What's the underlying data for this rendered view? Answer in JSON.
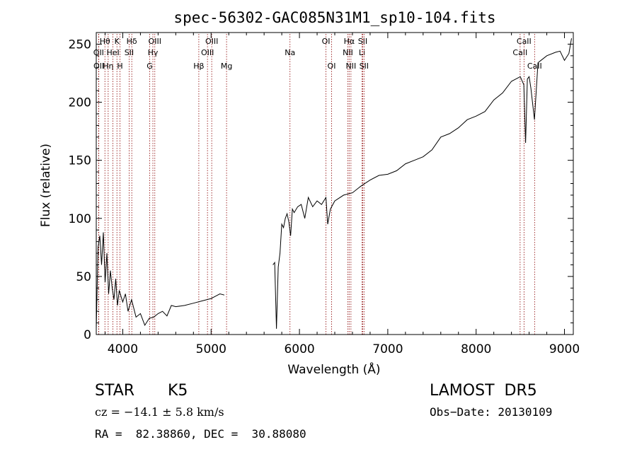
{
  "chart_data": {
    "type": "line",
    "title": "spec-56302-GAC085N31M1_sp10-104.fits",
    "xlabel": "Wavelength (Å)",
    "ylabel": "Flux (relative)",
    "xlim": [
      3700,
      9100
    ],
    "ylim": [
      0,
      260
    ],
    "xticks": [
      4000,
      5000,
      6000,
      7000,
      8000,
      9000
    ],
    "yticks": [
      0,
      50,
      100,
      150,
      200,
      250
    ],
    "grid": false,
    "line_color": "#000000",
    "marker_line_color": "#8b0000",
    "series": [
      {
        "x": [
          3700,
          3720,
          3740,
          3760,
          3780,
          3800,
          3820,
          3840,
          3860,
          3880,
          3900,
          3920,
          3940,
          3960,
          3980,
          4000,
          4030,
          4060,
          4100,
          4150,
          4200,
          4250,
          4300,
          4350,
          4400,
          4450,
          4500,
          4550,
          4600,
          4700,
          4800,
          4900,
          5000,
          5050,
          5100,
          5150
        ],
        "y": [
          5,
          75,
          85,
          60,
          88,
          45,
          70,
          35,
          55,
          40,
          30,
          48,
          25,
          38,
          33,
          28,
          35,
          20,
          30,
          15,
          18,
          8,
          14,
          15,
          18,
          20,
          16,
          25,
          24,
          25,
          27,
          29,
          31,
          33,
          35,
          34
        ]
      },
      {
        "x": [
          5700,
          5720,
          5740,
          5760,
          5780,
          5800,
          5820,
          5840,
          5860,
          5880,
          5900,
          5920,
          5940,
          5980,
          6020,
          6060,
          6100,
          6150,
          6200,
          6250,
          6300,
          6320,
          6350,
          6400,
          6500,
          6600,
          6700,
          6800,
          6900,
          7000,
          7100,
          7200,
          7300,
          7400,
          7500,
          7600,
          7700,
          7800,
          7900,
          8000,
          8100,
          8200,
          8300,
          8400,
          8450,
          8500,
          8540,
          8560,
          8580,
          8600,
          8620,
          8660,
          8700,
          8800,
          8900,
          8950,
          9000,
          9050,
          9080
        ],
        "y": [
          60,
          62,
          5,
          58,
          70,
          95,
          92,
          100,
          104,
          97,
          85,
          108,
          105,
          110,
          112,
          100,
          118,
          110,
          115,
          112,
          118,
          95,
          108,
          115,
          120,
          122,
          128,
          133,
          137,
          138,
          141,
          147,
          150,
          153,
          159,
          170,
          173,
          178,
          185,
          188,
          192,
          202,
          208,
          218,
          220,
          222,
          215,
          165,
          220,
          222,
          212,
          185,
          234,
          240,
          243,
          244,
          236,
          242,
          255
        ]
      }
    ],
    "line_markers": [
      {
        "wl": 3727,
        "name": "OII",
        "row": 2
      },
      {
        "wl": 3729,
        "name": "OII",
        "row": 3
      },
      {
        "wl": 3798,
        "name": "Hθ",
        "row": 1
      },
      {
        "wl": 3835,
        "name": "Hη",
        "row": 3
      },
      {
        "wl": 3889,
        "name": "HeI",
        "row": 2
      },
      {
        "wl": 3934,
        "name": "K",
        "row": 1
      },
      {
        "wl": 3969,
        "name": "H",
        "row": 3
      },
      {
        "wl": 4072,
        "name": "SII",
        "row": 2
      },
      {
        "wl": 4102,
        "name": "Hδ",
        "row": 1
      },
      {
        "wl": 4305,
        "name": "G",
        "row": 3
      },
      {
        "wl": 4341,
        "name": "Hγ",
        "row": 2
      },
      {
        "wl": 4363,
        "name": "OIII",
        "row": 1
      },
      {
        "wl": 4861,
        "name": "Hβ",
        "row": 3
      },
      {
        "wl": 4959,
        "name": "OIII",
        "row": 2
      },
      {
        "wl": 5007,
        "name": "OIII",
        "row": 1
      },
      {
        "wl": 5175,
        "name": "Mg",
        "row": 3
      },
      {
        "wl": 5893,
        "name": "Na",
        "row": 2
      },
      {
        "wl": 6300,
        "name": "OI",
        "row": 1
      },
      {
        "wl": 6364,
        "name": "OI",
        "row": 3
      },
      {
        "wl": 6548,
        "name": "NII",
        "row": 2
      },
      {
        "wl": 6563,
        "name": "Hα",
        "row": 1
      },
      {
        "wl": 6583,
        "name": "NII",
        "row": 3
      },
      {
        "wl": 6708,
        "name": "Li",
        "row": 2
      },
      {
        "wl": 6716,
        "name": "SII",
        "row": 1
      },
      {
        "wl": 6731,
        "name": "SII",
        "row": 3
      },
      {
        "wl": 8498,
        "name": "CaII",
        "row": 2
      },
      {
        "wl": 8542,
        "name": "CaII",
        "row": 1
      },
      {
        "wl": 8662,
        "name": "CaII",
        "row": 3
      }
    ]
  },
  "info": {
    "class": "STAR",
    "subclass": "K5",
    "release": "LAMOST  DR5",
    "cz": "cz = −14.1 ± 5.8 km/s",
    "obs_date": "Obs−Date: 20130109",
    "coords": "RA =  82.38860, DEC =  30.88080"
  }
}
